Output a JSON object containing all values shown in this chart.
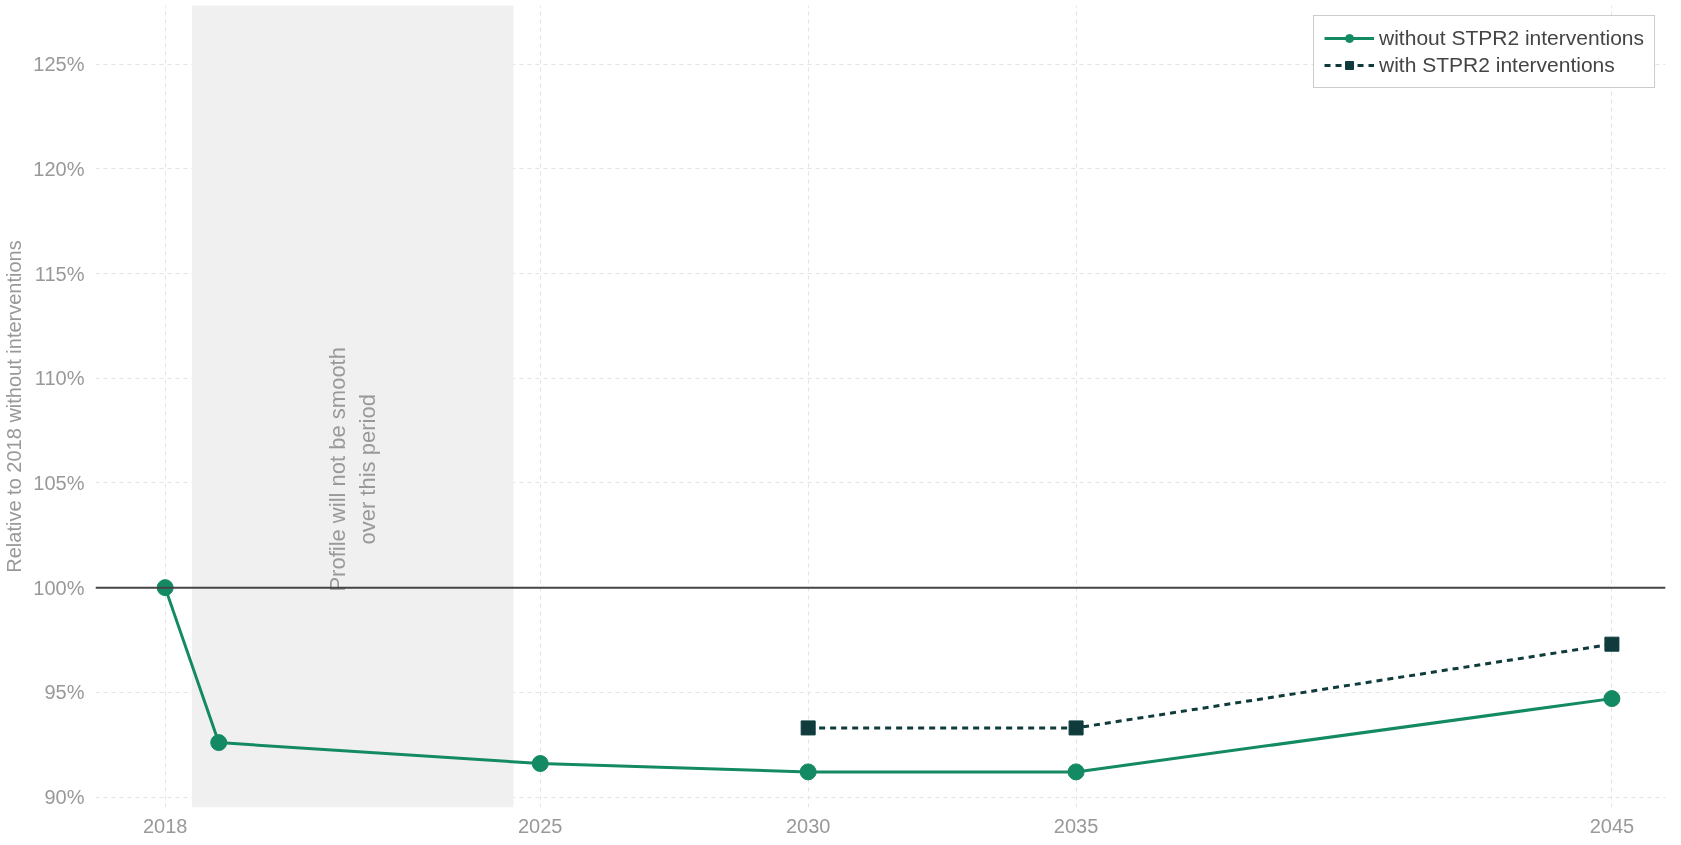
{
  "chart_data": {
    "type": "line",
    "ylabel": "Relative to 2018 without interventions",
    "xlim": [
      2016.7,
      2046
    ],
    "ylim": [
      89.5,
      127.8
    ],
    "xticks": [
      2018,
      2025,
      2030,
      2035,
      2045
    ],
    "yticks": [
      {
        "value": 90,
        "label": "90%"
      },
      {
        "value": 95,
        "label": "95%"
      },
      {
        "value": 100,
        "label": "100%"
      },
      {
        "value": 105,
        "label": "105%"
      },
      {
        "value": 110,
        "label": "110%"
      },
      {
        "value": 115,
        "label": "115%"
      },
      {
        "value": 120,
        "label": "120%"
      },
      {
        "value": 125,
        "label": "125%"
      }
    ],
    "series": [
      {
        "name": "without STPR2 interventions",
        "color": "#138a63",
        "x": [
          2018,
          2019,
          2025,
          2030,
          2035,
          2045
        ],
        "values": [
          100,
          92.6,
          91.6,
          91.2,
          91.2,
          94.7
        ],
        "marker": "circle",
        "line_style": "solid"
      },
      {
        "name": "with STPR2 interventions",
        "color": "#0f3b3c",
        "x": [
          2030,
          2035,
          2045
        ],
        "values": [
          93.3,
          93.3,
          97.3
        ],
        "marker": "square",
        "line_style": "dashed"
      }
    ],
    "ref_lines": [
      {
        "axis": "y",
        "value": 100,
        "color": "#444444"
      }
    ],
    "bands": [
      {
        "axis": "x",
        "from": 2018.5,
        "to": 2024.5,
        "label": "Profile will not be smooth\nover this period",
        "color": "#f0f0f0"
      }
    ],
    "grid": true,
    "legend": "top right"
  }
}
